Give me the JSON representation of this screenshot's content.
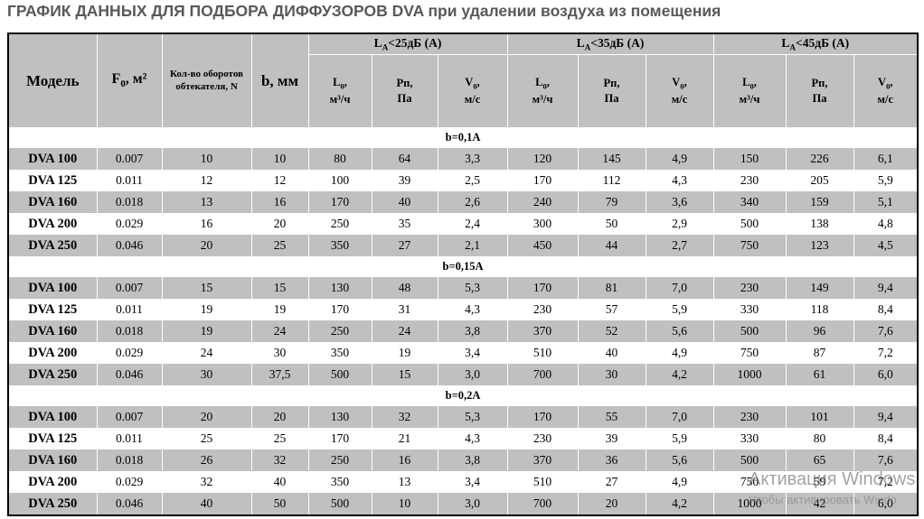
{
  "title": "ГРАФИК ДАННЫХ ДЛЯ ПОДБОРА ДИФФУЗОРОВ DVA при удалении воздуха из помещения",
  "colors": {
    "title_text": "#595959",
    "header_fill": "#c0c0c0",
    "row_gray": "#c0c0c0",
    "row_white": "#ffffff",
    "border": "#000000",
    "separator_dashed": "#ffffff",
    "watermark": "#6a6a6a"
  },
  "table": {
    "header": {
      "model": "Модель",
      "f0": {
        "pre": "F",
        "sub": "0",
        "post": ", м²"
      },
      "turns": "Кол-во оборотов обтекателя, N",
      "b": "b, мм",
      "groups": [
        {
          "pre": "L",
          "sub": "A",
          "post": "<25дБ (А)"
        },
        {
          "pre": "L",
          "sub": "A",
          "post": "<35дБ (А)"
        },
        {
          "pre": "L",
          "sub": "A",
          "post": "<45дБ (А)"
        }
      ],
      "subcols": [
        {
          "l1pre": "L",
          "l1sub": "0",
          "l1post": ",",
          "line2": "м³/ч"
        },
        {
          "l1pre": "Рп,",
          "l1sub": "",
          "l1post": "",
          "line2": "Па"
        },
        {
          "l1pre": "V",
          "l1sub": "0",
          "l1post": ",",
          "line2": "м/с"
        }
      ]
    },
    "sections": [
      {
        "label": "b=0,1A",
        "rows": [
          [
            "DVA 100",
            "0.007",
            "10",
            "10",
            "80",
            "64",
            "3,3",
            "120",
            "145",
            "4,9",
            "150",
            "226",
            "6,1"
          ],
          [
            "DVA 125",
            "0.011",
            "12",
            "12",
            "100",
            "39",
            "2,5",
            "170",
            "112",
            "4,3",
            "230",
            "205",
            "5,9"
          ],
          [
            "DVA 160",
            "0.018",
            "13",
            "16",
            "170",
            "40",
            "2,6",
            "240",
            "79",
            "3,6",
            "340",
            "159",
            "5,1"
          ],
          [
            "DVA 200",
            "0.029",
            "16",
            "20",
            "250",
            "35",
            "2,4",
            "300",
            "50",
            "2,9",
            "500",
            "138",
            "4,8"
          ],
          [
            "DVA 250",
            "0.046",
            "20",
            "25",
            "350",
            "27",
            "2,1",
            "450",
            "44",
            "2,7",
            "750",
            "123",
            "4,5"
          ]
        ]
      },
      {
        "label": "b=0,15A",
        "rows": [
          [
            "DVA 100",
            "0.007",
            "15",
            "15",
            "130",
            "48",
            "5,3",
            "170",
            "81",
            "7,0",
            "230",
            "149",
            "9,4"
          ],
          [
            "DVA 125",
            "0.011",
            "19",
            "19",
            "170",
            "31",
            "4,3",
            "230",
            "57",
            "5,9",
            "330",
            "118",
            "8,4"
          ],
          [
            "DVA 160",
            "0.018",
            "19",
            "24",
            "250",
            "24",
            "3,8",
            "370",
            "52",
            "5,6",
            "500",
            "96",
            "7,6"
          ],
          [
            "DVA 200",
            "0.029",
            "24",
            "30",
            "350",
            "19",
            "3,4",
            "510",
            "40",
            "4,9",
            "750",
            "87",
            "7,2"
          ],
          [
            "DVA 250",
            "0.046",
            "30",
            "37,5",
            "500",
            "15",
            "3,0",
            "700",
            "30",
            "4,2",
            "1000",
            "61",
            "6,0"
          ]
        ]
      },
      {
        "label": "b=0,2A",
        "rows": [
          [
            "DVA 100",
            "0.007",
            "20",
            "20",
            "130",
            "32",
            "5,3",
            "170",
            "55",
            "7,0",
            "230",
            "101",
            "9,4"
          ],
          [
            "DVA 125",
            "0.011",
            "25",
            "25",
            "170",
            "21",
            "4,3",
            "230",
            "39",
            "5,9",
            "330",
            "80",
            "8,4"
          ],
          [
            "DVA 160",
            "0.018",
            "26",
            "32",
            "250",
            "16",
            "3,8",
            "370",
            "36",
            "5,6",
            "500",
            "65",
            "7,6"
          ],
          [
            "DVA 200",
            "0.029",
            "32",
            "40",
            "350",
            "13",
            "3,4",
            "510",
            "27",
            "4,9",
            "750",
            "59",
            "7,2"
          ],
          [
            "DVA 250",
            "0.046",
            "40",
            "50",
            "500",
            "10",
            "3,0",
            "700",
            "20",
            "4,2",
            "1000",
            "42",
            "6,0"
          ]
        ]
      }
    ]
  },
  "watermark": {
    "line1": "Активация Windows",
    "line2": "Чтобы активировать Windo"
  }
}
